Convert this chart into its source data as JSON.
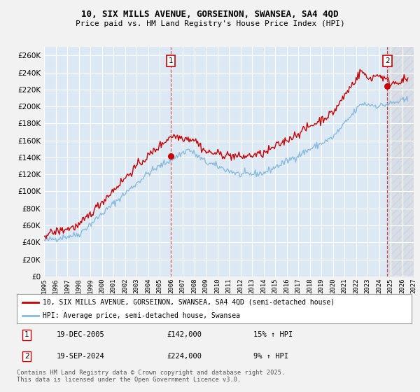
{
  "title": "10, SIX MILLS AVENUE, GORSEINON, SWANSEA, SA4 4QD",
  "subtitle": "Price paid vs. HM Land Registry's House Price Index (HPI)",
  "ylabel_vals": [
    0,
    20000,
    40000,
    60000,
    80000,
    100000,
    120000,
    140000,
    160000,
    180000,
    200000,
    220000,
    240000,
    260000
  ],
  "ylim": [
    0,
    270000
  ],
  "xlim_start": 1995.0,
  "xlim_end": 2027.0,
  "sale1_x": 2005.96,
  "sale1_y": 142000,
  "sale2_x": 2024.72,
  "sale2_y": 224000,
  "bg_color": "#dce9f5",
  "fig_bg_color": "#f2f2f2",
  "grid_color": "#ffffff",
  "hpi_color": "#88bbdd",
  "price_color": "#cc0000",
  "legend_label_price": "10, SIX MILLS AVENUE, GORSEINON, SWANSEA, SA4 4QD (semi-detached house)",
  "legend_label_hpi": "HPI: Average price, semi-detached house, Swansea",
  "footer_text": "Contains HM Land Registry data © Crown copyright and database right 2025.\nThis data is licensed under the Open Government Licence v3.0.",
  "note1_date": "19-DEC-2005",
  "note1_price": "£142,000",
  "note1_hpi": "15% ↑ HPI",
  "note2_date": "19-SEP-2024",
  "note2_price": "£224,000",
  "note2_hpi": "9% ↑ HPI"
}
